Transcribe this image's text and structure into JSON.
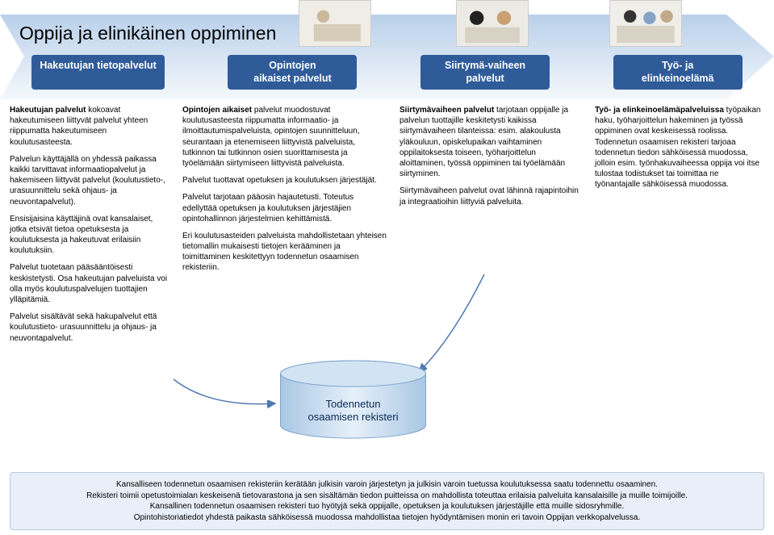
{
  "title": "Oppija ja elinikäinen oppiminen",
  "colors": {
    "pill_bg": "#2f5b99",
    "pill_fg": "#ffffff",
    "arrow_top": "#b9d0ea",
    "arrow_bottom": "#d9e5f2",
    "cylinder_light": "#d2e4f3",
    "cylinder_dark": "#a9c7e4",
    "footer_bg": "#e8eff8",
    "footer_border": "#b7c9e0",
    "connector": "#5078b0"
  },
  "pills": [
    "Hakeutujan tietopalvelut",
    "Opintojen\naikaiset palvelut",
    "Siirtymä-vaiheen\npalvelut",
    "Työ- ja\nelinkeinoelämä"
  ],
  "columns": {
    "col1": {
      "p1_lead": "Hakeutujan palvelut",
      "p1_rest": " kokoavat hakeutumiseen liittyvät palvelut yhteen riippumatta hakeutumiseen koulutusasteesta.",
      "p2": "Palvelun käyttäjällä on yhdessä paikassa kaikki tarvittavat informaatiopalvelut ja hakemiseen liittyvät palvelut (koulutustieto-, urasuunnittelu sekä ohjaus- ja neuvontapalvelut).",
      "p3": "Ensisijaisina käyttäjinä ovat kansalaiset, jotka etsivät tietoa opetuksesta ja koulutuksesta ja hakeutuvat erilaisiin koulutuksiin.",
      "p4": "Palvelut tuotetaan pääsääntöisesti keskistetysti. Osa hakeutujan palveluista voi olla myös koulutuspalvelujen tuottajien ylläpitämiä.",
      "p5": "Palvelut sisältävät sekä hakupalvelut että koulutustieto- urasuunnittelu ja ohjaus- ja neuvontapalvelut."
    },
    "col2": {
      "p1_lead": "Opintojen aikaiset",
      "p1_rest": " palvelut muodostuvat koulutusasteesta riippumatta informaatio- ja ilmoittautumispalveluista, opintojen suunnitteluun, seurantaan ja etenemiseen liittyvistä palveluista, tutkinnon tai tutkinnon osien suorittamisesta ja työelämään siirtymiseen liittyvistä palveluista.",
      "p2": "Palvelut tuottavat opetuksen ja koulutuksen järjestäjät.",
      "p3": "Palvelut tarjotaan pääosin hajautetusti. Toteutus edellyttää opetuksen ja koulutuksen järjestäjien opintohallinnon järjestelmien kehittämistä.",
      "p4": "Eri koulutusasteiden palveluista mahdollistetaan yhteisen tietomallin mukaisesti tietojen kerääminen ja toimittaminen keskitettyyn todennetun osaamisen rekisteriin."
    },
    "col3": {
      "p1_lead": "Siirtymävaiheen palvelut",
      "p1_rest": " tarjotaan oppijalle ja palvelun tuottajille keskitetysti kaikissa siirtymävaiheen tilanteissa: esim. alakoulusta yläkouluun, opiskelupaikan vaihtaminen oppilaitoksesta toiseen, työharjoittelun aloittaminen, työssä oppiminen tai työelämään siirtyminen.",
      "p2": "Siirtymävaiheen palvelut ovat lähinnä rajapintoihin ja integraatioihin liittyviä palveluita."
    },
    "col4": {
      "p1_lead": "Työ- ja elinkeinoelämäpalveluissa",
      "p1_rest": " työpaikan haku, työharjoittelun hakeminen ja työssä oppiminen ovat keskeisessä roolissa. Todennetun osaamisen rekisteri tarjoaa todennetun tiedon sähköisessä muodossa, jolloin esim. työnhakuvaiheessa oppija voi itse tulostaa todistukset tai toimittaa ne työnantajalle sähköisessä muodossa."
    }
  },
  "cylinder_label": "Todennetun\nosaamisen rekisteri",
  "footer": "Kansalliseen todennetun osaamisen rekisteriin kerätään julkisin varoin järjestetyn ja julkisin varoin tuetussa koulutuksessa saatu todennettu osaaminen.\nRekisteri toimii opetustoimialan keskeisenä tietovarastona ja sen sisältämän tiedon puitteissa on mahdollista toteuttaa erilaisia palveluita kansalaisille ja muille toimijoille.\nKansallinen todennetun osaamisen rekisteri tuo hyötyjä sekä oppijalle, opetuksen ja koulutuksen järjestäjille että muille sidosryhmille.\nOpintohistoriatiedot yhdestä paikasta sähköisessä muodossa mahdollistaa tietojen hyödyntämisen monin eri tavoin Oppijan verkkopalvelussa."
}
